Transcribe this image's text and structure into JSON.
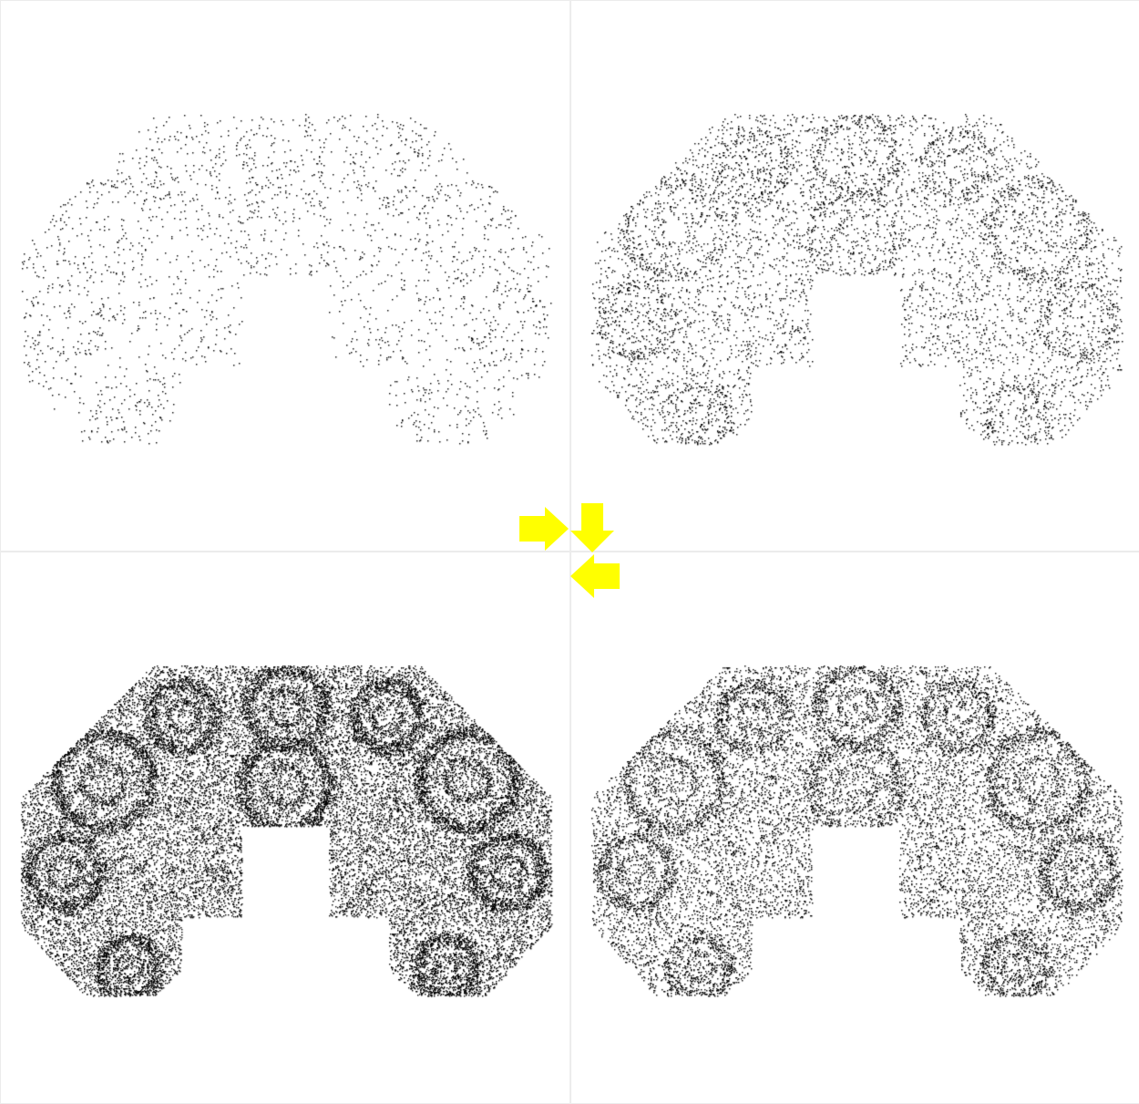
{
  "figure": {
    "panels": [
      {
        "id": "panel-1",
        "point_density": 0.05
      },
      {
        "id": "panel-2",
        "point_density": 0.16
      },
      {
        "id": "panel-3",
        "point_density": 0.75
      },
      {
        "id": "panel-4",
        "point_density": 0.42
      }
    ],
    "colors": {
      "background": "#ffffff",
      "points": "#000000",
      "divider": "#ececec",
      "arrows": "#ffff00"
    },
    "arrows": [
      {
        "name": "arrow-right-icon",
        "direction": "right"
      },
      {
        "name": "arrow-down-icon",
        "direction": "down"
      },
      {
        "name": "arrow-left-icon",
        "direction": "left"
      }
    ]
  }
}
